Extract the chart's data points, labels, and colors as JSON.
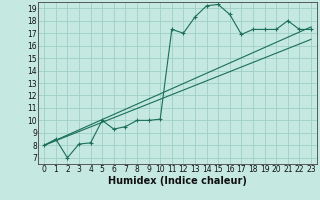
{
  "xlabel": "Humidex (Indice chaleur)",
  "xlim": [
    -0.5,
    23.5
  ],
  "ylim": [
    6.5,
    19.5
  ],
  "xticks": [
    0,
    1,
    2,
    3,
    4,
    5,
    6,
    7,
    8,
    9,
    10,
    11,
    12,
    13,
    14,
    15,
    16,
    17,
    18,
    19,
    20,
    21,
    22,
    23
  ],
  "yticks": [
    7,
    8,
    9,
    10,
    11,
    12,
    13,
    14,
    15,
    16,
    17,
    18,
    19
  ],
  "bg_color": "#c5e8e0",
  "grid_color": "#9ecfc5",
  "line_color": "#1a6e5a",
  "line1_x": [
    0,
    1,
    2,
    3,
    4,
    5,
    6,
    7,
    8,
    9,
    10,
    11,
    12,
    13,
    14,
    15,
    16,
    17,
    18,
    19,
    20,
    21,
    22,
    23
  ],
  "line1_y": [
    8.0,
    8.5,
    7.0,
    8.1,
    8.2,
    10.0,
    9.3,
    9.5,
    10.0,
    10.0,
    10.1,
    17.3,
    17.0,
    18.3,
    19.2,
    19.3,
    18.5,
    16.9,
    17.3,
    17.3,
    17.3,
    18.0,
    17.3,
    17.3
  ],
  "line2_x": [
    0,
    23
  ],
  "line2_y": [
    8.0,
    17.5
  ],
  "line3_x": [
    0,
    23
  ],
  "line3_y": [
    8.0,
    16.5
  ],
  "fontsize_tick": 5.5,
  "fontsize_label": 7.0
}
